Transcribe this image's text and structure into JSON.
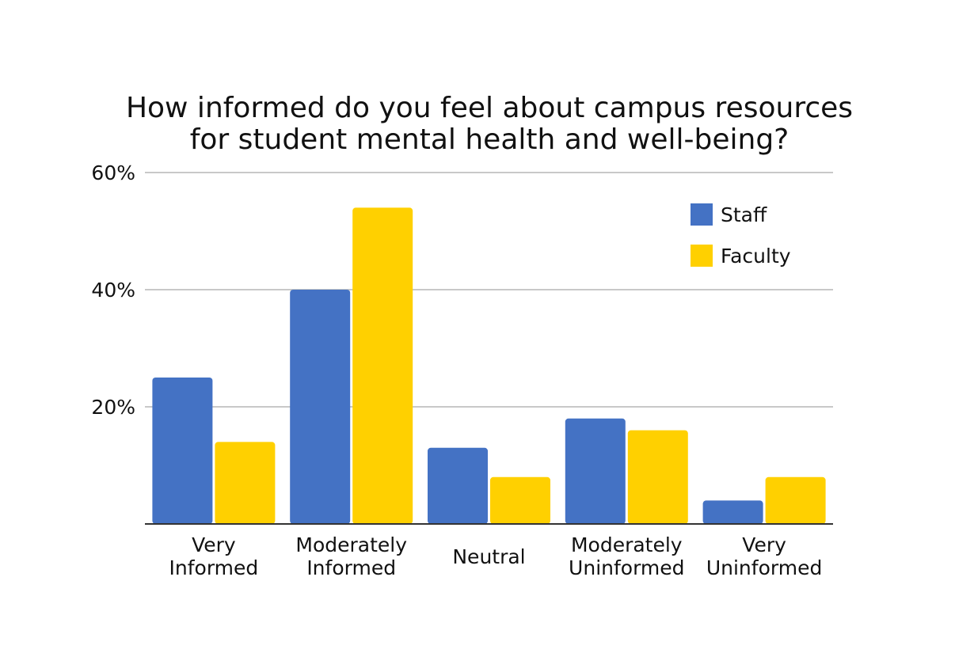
{
  "chart_data": {
    "type": "bar",
    "title_lines": [
      "How informed do you feel about campus resources",
      "for student mental health and well-being?"
    ],
    "categories": [
      [
        "Very",
        "Informed"
      ],
      [
        "Moderately",
        "Informed"
      ],
      [
        "Neutral"
      ],
      [
        "Moderately",
        "Uninformed"
      ],
      [
        "Very",
        "Uninformed"
      ]
    ],
    "series": [
      {
        "name": "Staff",
        "color": "#4472C4",
        "values": [
          25,
          40,
          13,
          18,
          4
        ]
      },
      {
        "name": "Faculty",
        "color": "#FFD000",
        "values": [
          14,
          54,
          8,
          16,
          8
        ]
      }
    ],
    "ylim": [
      0,
      60
    ],
    "yticks": [
      20,
      40,
      60
    ],
    "ytick_labels": [
      "20%",
      "40%",
      "60%"
    ],
    "grid": true,
    "legend_position": "top-right",
    "xlabel": "",
    "ylabel": ""
  }
}
